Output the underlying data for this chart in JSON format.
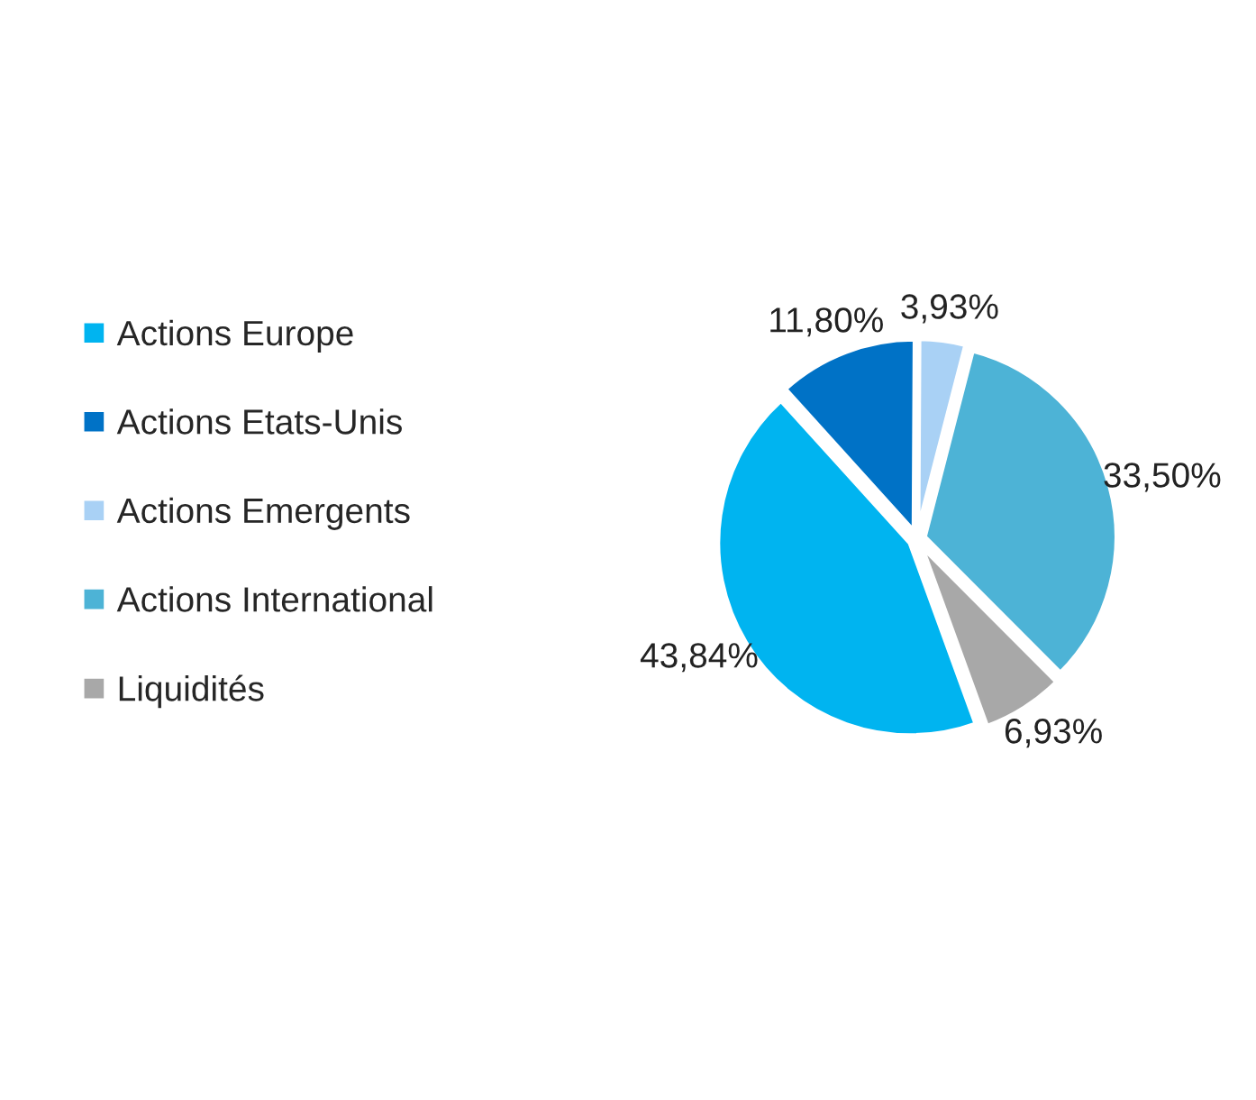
{
  "chart_data": {
    "type": "pie",
    "categories": [
      "Actions Europe",
      "Actions Etats-Unis",
      "Actions Emergents",
      "Actions International",
      "Liquidités"
    ],
    "values": [
      43.84,
      11.8,
      3.93,
      33.5,
      6.93
    ],
    "value_labels": [
      "43,84%",
      "11,80%",
      "3,93%",
      "33,50%",
      "6,93%"
    ],
    "colors": [
      "#00b4f0",
      "#0072c6",
      "#a9d1f5",
      "#4db3d6",
      "#a8a8a8"
    ],
    "legend": "left"
  }
}
